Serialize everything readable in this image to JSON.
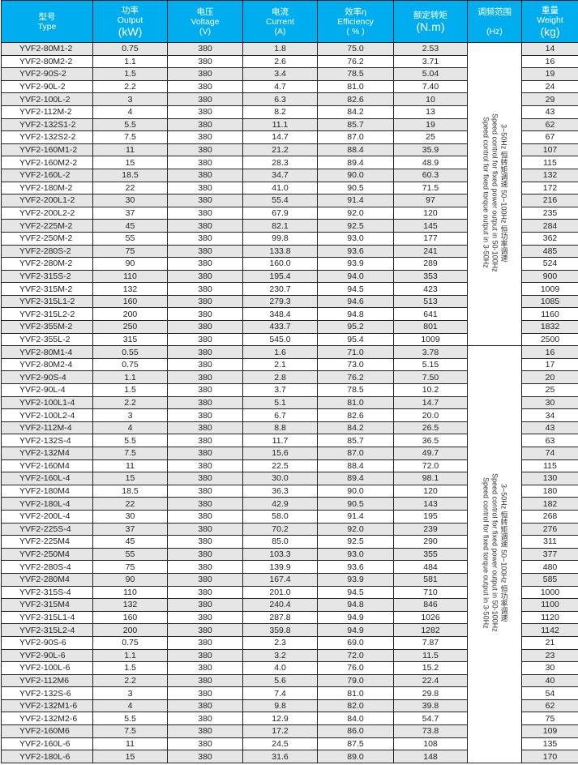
{
  "header": {
    "type": {
      "cn": "型号",
      "en": "Type"
    },
    "output": {
      "cn": "功率",
      "en": "Output",
      "unit": "(kW)"
    },
    "voltage": {
      "cn": "电压",
      "en": "Voltage",
      "unit": "(V)"
    },
    "current": {
      "cn": "电流",
      "en": "Current",
      "unit": "(A)"
    },
    "efficiency": {
      "cn": "效率η",
      "en": "Efficiency",
      "unit": "( % )"
    },
    "torque": {
      "cn": "额定转矩",
      "unit": "(N.m)"
    },
    "range": {
      "cn": "调频范围",
      "unit": "(Hz)"
    },
    "weight": {
      "cn": "重量",
      "en": "Weight",
      "unit": "(kg)"
    }
  },
  "range_text": [
    "3~50Hz 恒转矩调速 50~100Hz 恒功率调速",
    "Speed control for fixed power output in 50-100Hz",
    "Speed control for fixed torque output in 3-50Hz"
  ],
  "colors": {
    "header_bg": "#00aeef",
    "stripe": "#e6e6e6"
  },
  "rows": [
    [
      "YVF2-80M1-2",
      "0.75",
      "380",
      "1.8",
      "75.0",
      "2.53",
      "14"
    ],
    [
      "YVF2-80M2-2",
      "1.1",
      "380",
      "2.6",
      "76.2",
      "3.71",
      "16"
    ],
    [
      "YVF2-90S-2",
      "1.5",
      "380",
      "3.4",
      "78.5",
      "5.04",
      "19"
    ],
    [
      "YVF2-90L-2",
      "2.2",
      "380",
      "4.7",
      "81.0",
      "7.40",
      "24"
    ],
    [
      "YVF2-100L-2",
      "3",
      "380",
      "6.3",
      "82.6",
      "10",
      "29"
    ],
    [
      "YVF2-112M-2",
      "4",
      "380",
      "8.2",
      "84.2",
      "13",
      "43"
    ],
    [
      "YVF2-132S1-2",
      "5.5",
      "380",
      "11.1",
      "85.7",
      "19",
      "62"
    ],
    [
      "YVF2-132S2-2",
      "7.5",
      "380",
      "14.7",
      "87.0",
      "25",
      "67"
    ],
    [
      "YVF2-160M1-2",
      "11",
      "380",
      "21.2",
      "88.4",
      "35.9",
      "107"
    ],
    [
      "YVF2-160M2-2",
      "15",
      "380",
      "28.3",
      "89.4",
      "48.9",
      "115"
    ],
    [
      "YVF2-160L-2",
      "18.5",
      "380",
      "34.7",
      "90.0",
      "60.3",
      "132"
    ],
    [
      "YVF2-180M-2",
      "22",
      "380",
      "41.0",
      "90.5",
      "71.5",
      "172"
    ],
    [
      "YVF2-200L1-2",
      "30",
      "380",
      "55.4",
      "91.4",
      "97",
      "216"
    ],
    [
      "YVF2-200L2-2",
      "37",
      "380",
      "67.9",
      "92.0",
      "120",
      "235"
    ],
    [
      "YVF2-225M-2",
      "45",
      "380",
      "82.1",
      "92.5",
      "145",
      "284"
    ],
    [
      "YVF2-250M-2",
      "55",
      "380",
      "99.8",
      "93.0",
      "177",
      "362"
    ],
    [
      "YVF2-280S-2",
      "75",
      "380",
      "133.8",
      "93.6",
      "241",
      "485"
    ],
    [
      "YVF2-280M-2",
      "90",
      "380",
      "160.0",
      "93.9",
      "289",
      "524"
    ],
    [
      "YVF2-315S-2",
      "110",
      "380",
      "195.4",
      "94.0",
      "353",
      "900"
    ],
    [
      "YVF2-315M-2",
      "132",
      "380",
      "230.7",
      "94.5",
      "423",
      "1009"
    ],
    [
      "YVF2-315L1-2",
      "160",
      "380",
      "279.3",
      "94.6",
      "513",
      "1085"
    ],
    [
      "YVF2-315L2-2",
      "200",
      "380",
      "348.4",
      "94.8",
      "641",
      "1160"
    ],
    [
      "YVF2-355M-2",
      "250",
      "380",
      "433.7",
      "95.2",
      "801",
      "1832"
    ],
    [
      "YVF2-355L-2",
      "315",
      "380",
      "545.0",
      "95.4",
      "1009",
      "2500"
    ],
    [
      "YVF2-80M1-4",
      "0.55",
      "380",
      "1.6",
      "71.0",
      "3.78",
      "16"
    ],
    [
      "YVF2-80M2-4",
      "0.75",
      "380",
      "2.1",
      "73.0",
      "5.15",
      "17"
    ],
    [
      "YVF2-90S-4",
      "1.1",
      "380",
      "2.8",
      "76.2",
      "7.50",
      "20"
    ],
    [
      "YVF2-90L-4",
      "1.5",
      "380",
      "3.7",
      "78.5",
      "10.2",
      "25"
    ],
    [
      "YVF2-100L1-4",
      "2.2",
      "380",
      "5.1",
      "81.0",
      "14.7",
      "30"
    ],
    [
      "YVF2-100L2-4",
      "3",
      "380",
      "6.7",
      "82.6",
      "20.0",
      "34"
    ],
    [
      "YVF2-112M-4",
      "4",
      "380",
      "8.8",
      "84.2",
      "26.5",
      "43"
    ],
    [
      "YVF2-132S-4",
      "5.5",
      "380",
      "11.7",
      "85.7",
      "36.5",
      "63"
    ],
    [
      "YVF2-132M4",
      "7.5",
      "380",
      "15.6",
      "87.0",
      "49.7",
      "74"
    ],
    [
      "YVF2-160M4",
      "11",
      "380",
      "22.5",
      "88.4",
      "72.0",
      "115"
    ],
    [
      "YVF2-160L-4",
      "15",
      "380",
      "30.0",
      "89.4",
      "98.1",
      "130"
    ],
    [
      "YVF2-180M4",
      "18.5",
      "380",
      "36.3",
      "90.0",
      "120",
      "180"
    ],
    [
      "YVF2-180L-4",
      "22",
      "380",
      "42.9",
      "90.5",
      "143",
      "182"
    ],
    [
      "YVF2-200L-4",
      "30",
      "380",
      "58.0",
      "91.4",
      "195",
      "268"
    ],
    [
      "YVF2-225S-4",
      "37",
      "380",
      "70.2",
      "92.0",
      "239",
      "276"
    ],
    [
      "YVF2-225M4",
      "45",
      "380",
      "85.0",
      "92.5",
      "290",
      "311"
    ],
    [
      "YVF2-250M4",
      "55",
      "380",
      "103.3",
      "93.0",
      "355",
      "377"
    ],
    [
      "YVF2-280S-4",
      "75",
      "380",
      "139.9",
      "93.6",
      "484",
      "480"
    ],
    [
      "YVF2-280M4",
      "90",
      "380",
      "167.4",
      "93.9",
      "581",
      "585"
    ],
    [
      "YVF2-315S-4",
      "110",
      "380",
      "201.0",
      "94.5",
      "710",
      "1000"
    ],
    [
      "YVF2-315M4",
      "132",
      "380",
      "240.4",
      "94.8",
      "846",
      "1100"
    ],
    [
      "YVF2-315L1-4",
      "160",
      "380",
      "287.8",
      "94.9",
      "1026",
      "1120"
    ],
    [
      "YVF2-315L2-4",
      "200",
      "380",
      "359.8",
      "94.9",
      "1282",
      "1142"
    ],
    [
      "YVF2-90S-6",
      "0.75",
      "380",
      "2.3",
      "69.0",
      "7.87",
      "21"
    ],
    [
      "YVF2-90L-6",
      "1.1",
      "380",
      "3.2",
      "72.0",
      "11.5",
      "23"
    ],
    [
      "YVF2-100L-6",
      "1.5",
      "380",
      "4.0",
      "76.0",
      "15.2",
      "30"
    ],
    [
      "YVF2-112M6",
      "2.2",
      "380",
      "5.6",
      "79.0",
      "22.4",
      "40"
    ],
    [
      "YVF2-132S-6",
      "3",
      "380",
      "7.4",
      "81.0",
      "29.8",
      "54"
    ],
    [
      "YVF2-132M1-6",
      "4",
      "380",
      "9.8",
      "82.0",
      "39.8",
      "62"
    ],
    [
      "YVF2-132M2-6",
      "5.5",
      "380",
      "12.9",
      "84.0",
      "54.7",
      "75"
    ],
    [
      "YVF2-160M6",
      "7.5",
      "380",
      "17.2",
      "86.0",
      "73.8",
      "109"
    ],
    [
      "YVF2-160L-6",
      "11",
      "380",
      "24.5",
      "87.5",
      "108",
      "135"
    ],
    [
      "YVF2-180L-6",
      "15",
      "380",
      "31.6",
      "89.0",
      "148",
      "170"
    ]
  ]
}
